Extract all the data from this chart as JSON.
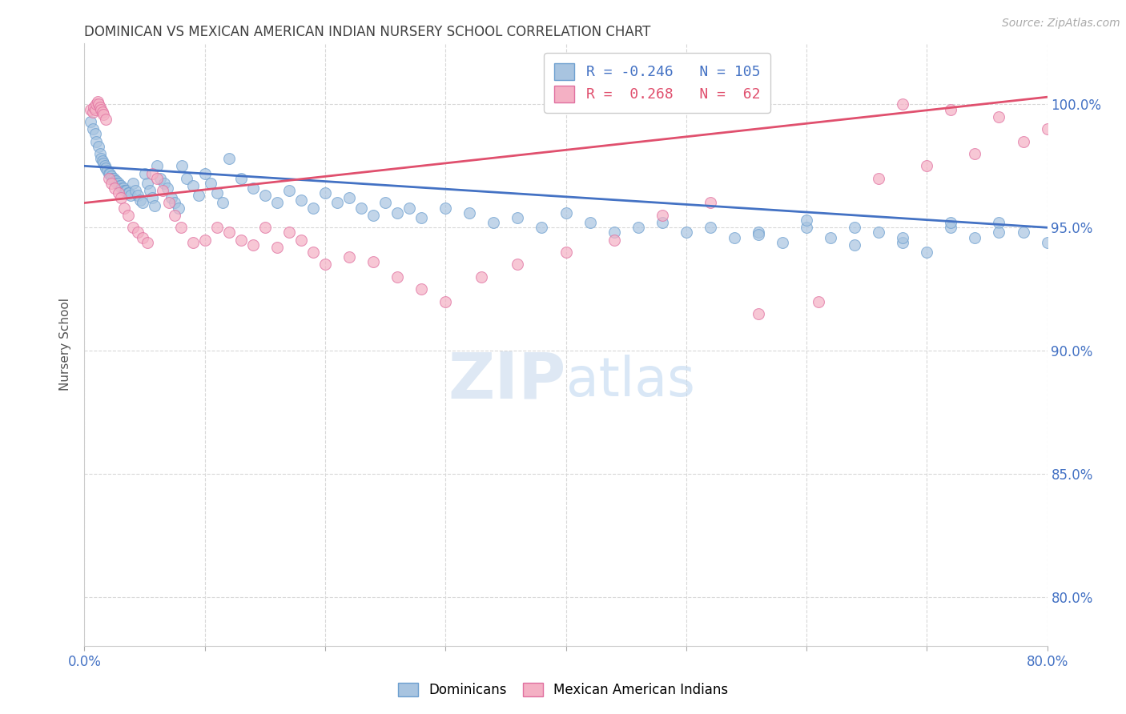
{
  "title": "DOMINICAN VS MEXICAN AMERICAN INDIAN NURSERY SCHOOL CORRELATION CHART",
  "source": "Source: ZipAtlas.com",
  "ylabel": "Nursery School",
  "right_yticks": [
    "100.0%",
    "95.0%",
    "90.0%",
    "85.0%",
    "80.0%"
  ],
  "right_ytick_vals": [
    1.0,
    0.95,
    0.9,
    0.85,
    0.8
  ],
  "x_range": [
    0.0,
    0.8
  ],
  "y_range": [
    0.78,
    1.025
  ],
  "legend_r1": "R = -0.246   N = 105",
  "legend_r2": "R =  0.268   N =  62",
  "blue_color": "#a8c4e0",
  "pink_color": "#f4b0c4",
  "blue_line_color": "#4472c4",
  "pink_line_color": "#e0506e",
  "blue_dot_edge": "#6ea0d0",
  "pink_dot_edge": "#e070a0",
  "legend_blue_text": "#4472c4",
  "legend_pink_text": "#e0506e",
  "watermark_color": "#c8d8f0",
  "grid_color": "#d8d8d8",
  "title_color": "#404040",
  "axis_color": "#4472c4",
  "blue_scatter_x": [
    0.005,
    0.007,
    0.009,
    0.01,
    0.012,
    0.013,
    0.014,
    0.015,
    0.016,
    0.017,
    0.018,
    0.019,
    0.02,
    0.021,
    0.022,
    0.023,
    0.024,
    0.025,
    0.026,
    0.027,
    0.028,
    0.029,
    0.03,
    0.031,
    0.032,
    0.033,
    0.034,
    0.035,
    0.036,
    0.037,
    0.038,
    0.04,
    0.042,
    0.044,
    0.046,
    0.048,
    0.05,
    0.052,
    0.054,
    0.056,
    0.058,
    0.06,
    0.063,
    0.066,
    0.069,
    0.072,
    0.075,
    0.078,
    0.081,
    0.085,
    0.09,
    0.095,
    0.1,
    0.105,
    0.11,
    0.115,
    0.12,
    0.13,
    0.14,
    0.15,
    0.16,
    0.17,
    0.18,
    0.19,
    0.2,
    0.21,
    0.22,
    0.23,
    0.24,
    0.25,
    0.26,
    0.27,
    0.28,
    0.3,
    0.32,
    0.34,
    0.36,
    0.38,
    0.4,
    0.42,
    0.44,
    0.46,
    0.48,
    0.5,
    0.52,
    0.54,
    0.56,
    0.58,
    0.6,
    0.62,
    0.64,
    0.66,
    0.68,
    0.7,
    0.72,
    0.74,
    0.76,
    0.78,
    0.8,
    0.76,
    0.72,
    0.68,
    0.64,
    0.6,
    0.56
  ],
  "blue_scatter_y": [
    0.993,
    0.99,
    0.988,
    0.985,
    0.983,
    0.98,
    0.978,
    0.977,
    0.976,
    0.975,
    0.974,
    0.973,
    0.972,
    0.972,
    0.971,
    0.97,
    0.97,
    0.969,
    0.969,
    0.968,
    0.968,
    0.967,
    0.967,
    0.966,
    0.966,
    0.965,
    0.965,
    0.965,
    0.964,
    0.964,
    0.963,
    0.968,
    0.965,
    0.963,
    0.961,
    0.96,
    0.972,
    0.968,
    0.965,
    0.962,
    0.959,
    0.975,
    0.97,
    0.968,
    0.966,
    0.962,
    0.96,
    0.958,
    0.975,
    0.97,
    0.967,
    0.963,
    0.972,
    0.968,
    0.964,
    0.96,
    0.978,
    0.97,
    0.966,
    0.963,
    0.96,
    0.965,
    0.961,
    0.958,
    0.964,
    0.96,
    0.962,
    0.958,
    0.955,
    0.96,
    0.956,
    0.958,
    0.954,
    0.958,
    0.956,
    0.952,
    0.954,
    0.95,
    0.956,
    0.952,
    0.948,
    0.95,
    0.952,
    0.948,
    0.95,
    0.946,
    0.948,
    0.944,
    0.95,
    0.946,
    0.943,
    0.948,
    0.944,
    0.94,
    0.95,
    0.946,
    0.952,
    0.948,
    0.944,
    0.948,
    0.952,
    0.946,
    0.95,
    0.953,
    0.947
  ],
  "pink_scatter_x": [
    0.005,
    0.007,
    0.008,
    0.009,
    0.01,
    0.011,
    0.012,
    0.013,
    0.014,
    0.015,
    0.016,
    0.018,
    0.02,
    0.022,
    0.025,
    0.028,
    0.03,
    0.033,
    0.036,
    0.04,
    0.044,
    0.048,
    0.052,
    0.056,
    0.06,
    0.065,
    0.07,
    0.075,
    0.08,
    0.09,
    0.1,
    0.11,
    0.12,
    0.13,
    0.14,
    0.15,
    0.16,
    0.17,
    0.18,
    0.19,
    0.2,
    0.22,
    0.24,
    0.26,
    0.28,
    0.3,
    0.33,
    0.36,
    0.4,
    0.44,
    0.48,
    0.52,
    0.56,
    0.61,
    0.66,
    0.7,
    0.74,
    0.78,
    0.8,
    0.76,
    0.72,
    0.68
  ],
  "pink_scatter_y": [
    0.998,
    0.997,
    0.999,
    0.998,
    1.0,
    1.001,
    1.0,
    0.999,
    0.998,
    0.997,
    0.996,
    0.994,
    0.97,
    0.968,
    0.966,
    0.964,
    0.962,
    0.958,
    0.955,
    0.95,
    0.948,
    0.946,
    0.944,
    0.972,
    0.97,
    0.965,
    0.96,
    0.955,
    0.95,
    0.944,
    0.945,
    0.95,
    0.948,
    0.945,
    0.943,
    0.95,
    0.942,
    0.948,
    0.945,
    0.94,
    0.935,
    0.938,
    0.936,
    0.93,
    0.925,
    0.92,
    0.93,
    0.935,
    0.94,
    0.945,
    0.955,
    0.96,
    0.915,
    0.92,
    0.97,
    0.975,
    0.98,
    0.985,
    0.99,
    0.995,
    0.998,
    1.0
  ],
  "blue_trend_x": [
    0.0,
    0.8
  ],
  "blue_trend_y": [
    0.975,
    0.95
  ],
  "pink_trend_x": [
    0.0,
    0.8
  ],
  "pink_trend_y": [
    0.96,
    1.003
  ],
  "dot_size": 100,
  "dot_alpha": 0.7,
  "xtick_vals": [
    0.0,
    0.1,
    0.2,
    0.3,
    0.4,
    0.5,
    0.6,
    0.7,
    0.8
  ],
  "xtick_labels_show": [
    "0.0%",
    "",
    "",
    "",
    "",
    "",
    "",
    "",
    "80.0%"
  ]
}
